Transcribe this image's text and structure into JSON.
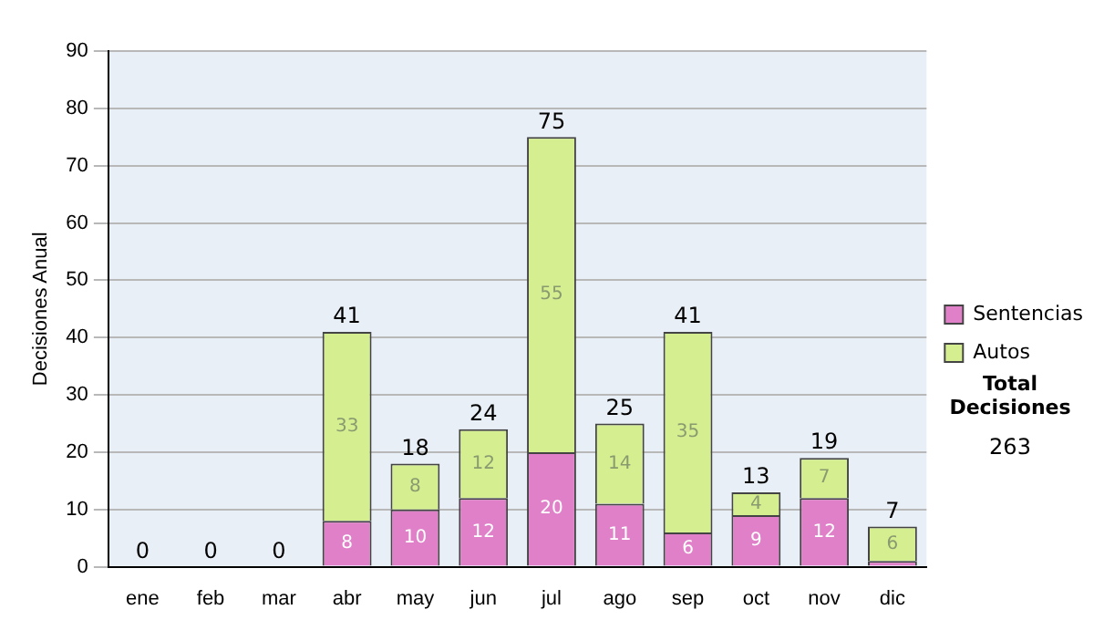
{
  "chart_data": {
    "type": "bar",
    "stacked": true,
    "ylabel": "Decisiones Anual",
    "categories": [
      "ene",
      "feb",
      "mar",
      "abr",
      "may",
      "jun",
      "jul",
      "ago",
      "sep",
      "oct",
      "nov",
      "dic"
    ],
    "series": [
      {
        "name": "Sentencias",
        "color": "#e080c8",
        "values": [
          0,
          0,
          0,
          8,
          10,
          12,
          20,
          11,
          6,
          9,
          12,
          1
        ],
        "value_labels": [
          null,
          null,
          null,
          "8",
          "10",
          "12",
          "20",
          "11",
          "6",
          "9",
          "12",
          null
        ]
      },
      {
        "name": "Autos",
        "color": "#d4ee90",
        "values": [
          0,
          0,
          0,
          33,
          8,
          12,
          55,
          14,
          35,
          4,
          7,
          6
        ],
        "value_labels": [
          null,
          null,
          null,
          "33",
          "8",
          "12",
          "55",
          "14",
          "35",
          "4",
          "7",
          "6"
        ]
      }
    ],
    "totals": [
      "0",
      "0",
      "0",
      "41",
      "18",
      "24",
      "75",
      "25",
      "41",
      "13",
      "19",
      "7"
    ],
    "ylim": [
      0,
      90
    ],
    "yticks": [
      0,
      10,
      20,
      30,
      40,
      50,
      60,
      70,
      80,
      90
    ],
    "grid": "y",
    "legend": "right",
    "annotations": [
      "Total Decisiones",
      "263"
    ]
  }
}
